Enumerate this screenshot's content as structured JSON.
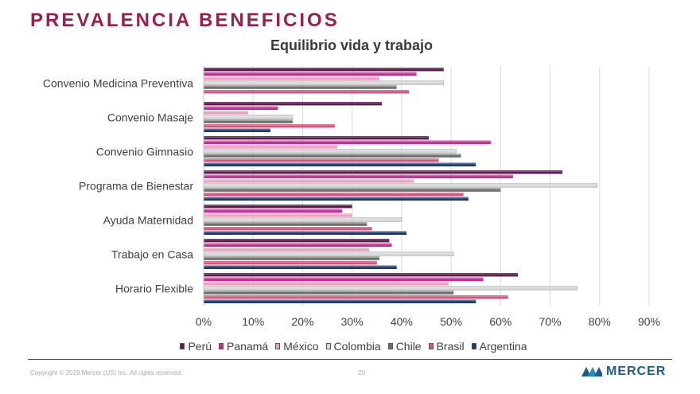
{
  "page": {
    "title": "PREVALENCIA BENEFICIOS",
    "copyright": "Copyright © 2019 Mercer (US) Inc. All rights reserved.",
    "page_number": "20",
    "brand": "MERCER"
  },
  "colors": {
    "title": "#9b1e4b",
    "grid": "#d9d9d9",
    "footer_rule": "#9b1e4b",
    "brand": "#1a5e8a"
  },
  "chart_data": {
    "type": "bar",
    "orientation": "horizontal",
    "title": "Equilibrio  vida y trabajo",
    "xlabel": "",
    "ylabel": "",
    "xlim": [
      0,
      90
    ],
    "x_ticks": [
      "0%",
      "10%",
      "20%",
      "30%",
      "40%",
      "50%",
      "60%",
      "70%",
      "80%",
      "90%"
    ],
    "x_tick_values": [
      0,
      10,
      20,
      30,
      40,
      50,
      60,
      70,
      80,
      90
    ],
    "grid": true,
    "legend_position": "bottom",
    "categories": [
      "Convenio Medicina Preventiva",
      "Convenio Masaje",
      "Convenio Gimnasio",
      "Programa de Bienestar",
      "Ayuda Maternidad",
      "Trabajo en Casa",
      "Horario Flexible"
    ],
    "series": [
      {
        "name": "Perú",
        "color": "#5c1a4e",
        "values": [
          48.5,
          36,
          45.5,
          72.5,
          30,
          37.5,
          63.5
        ]
      },
      {
        "name": "Panamá",
        "color": "#c72b8e",
        "values": [
          43,
          15,
          58,
          62.5,
          28,
          38,
          56.5
        ]
      },
      {
        "name": "México",
        "color": "#eaa1bf",
        "values": [
          35.5,
          9,
          27,
          42.5,
          30,
          33.5,
          49.5
        ]
      },
      {
        "name": "Colombia",
        "color": "#d9d9d9",
        "values": [
          48.5,
          18,
          51,
          79.5,
          40,
          50.5,
          75.5
        ]
      },
      {
        "name": "Chile",
        "color": "#6e6e6e",
        "values": [
          39,
          18,
          52,
          60,
          33,
          35.5,
          50.5
        ]
      },
      {
        "name": "Brasil",
        "color": "#d8527c",
        "values": [
          41.5,
          26.5,
          47.5,
          52.5,
          34,
          35,
          61.5
        ]
      },
      {
        "name": "Argentina",
        "color": "#1d3a6e",
        "values": [
          0,
          13.5,
          55,
          53.5,
          41,
          39,
          55
        ]
      }
    ]
  }
}
